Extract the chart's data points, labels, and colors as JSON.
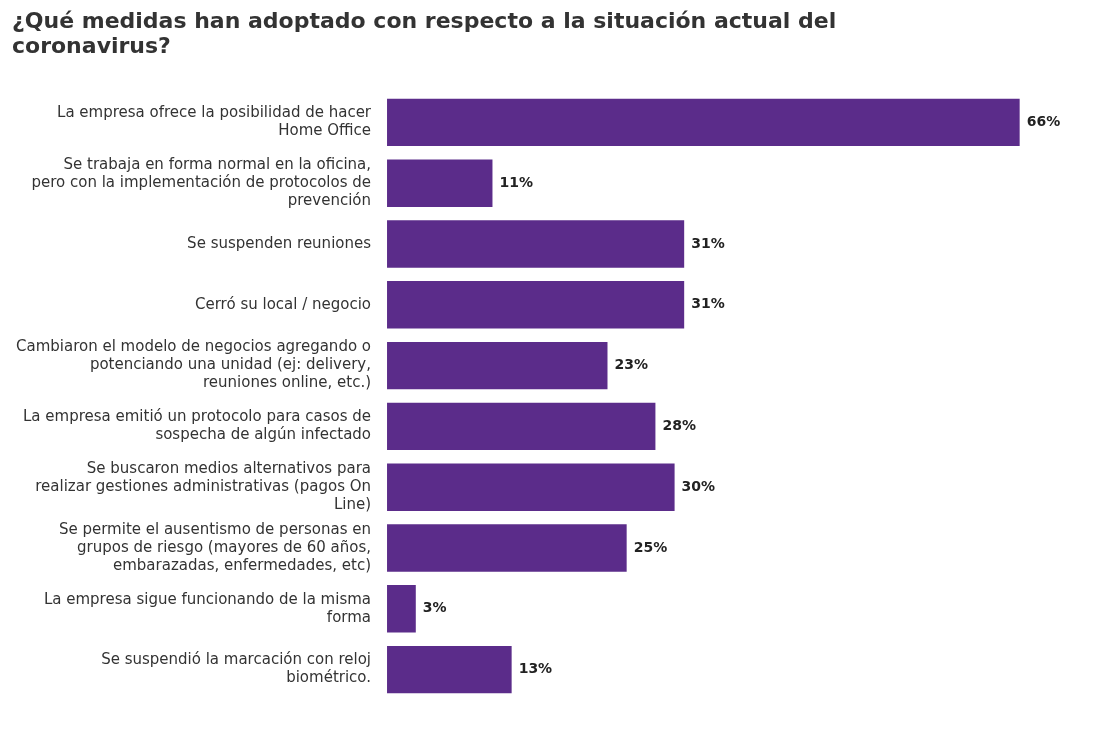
{
  "chart_data": {
    "type": "bar",
    "orientation": "horizontal",
    "title": "¿Qué medidas han adoptado con respecto a la situación actual del coronavirus?",
    "categories": [
      "La empresa ofrece la posibilidad de hacer Home Office",
      "Se trabaja en forma normal en la oficina, pero con la implementación de protocolos de prevención",
      "Se suspenden reuniones",
      "Cerró su local / negocio",
      "Cambiaron el modelo de negocios agregando o potenciando una unidad (ej: delivery, reuniones online, etc.)",
      "La empresa emitió un protocolo para casos de sospecha de algún infectado",
      "Se buscaron medios alternativos para realizar gestiones administrativas (pagos On Line)",
      "Se permite el ausentismo de personas en grupos de riesgo (mayores de 60 años, embarazadas, enfermedades, etc)",
      "La empresa sigue funcionando de la misma forma",
      "Se suspendió la marcación con reloj biométrico."
    ],
    "values": [
      66,
      11,
      31,
      31,
      23,
      28,
      30,
      25,
      3,
      13
    ],
    "value_labels": [
      "66%",
      "11%",
      "31%",
      "31%",
      "23%",
      "28%",
      "30%",
      "25%",
      "3%",
      "13%"
    ],
    "color": "#5b2c8a",
    "legend": false
  }
}
